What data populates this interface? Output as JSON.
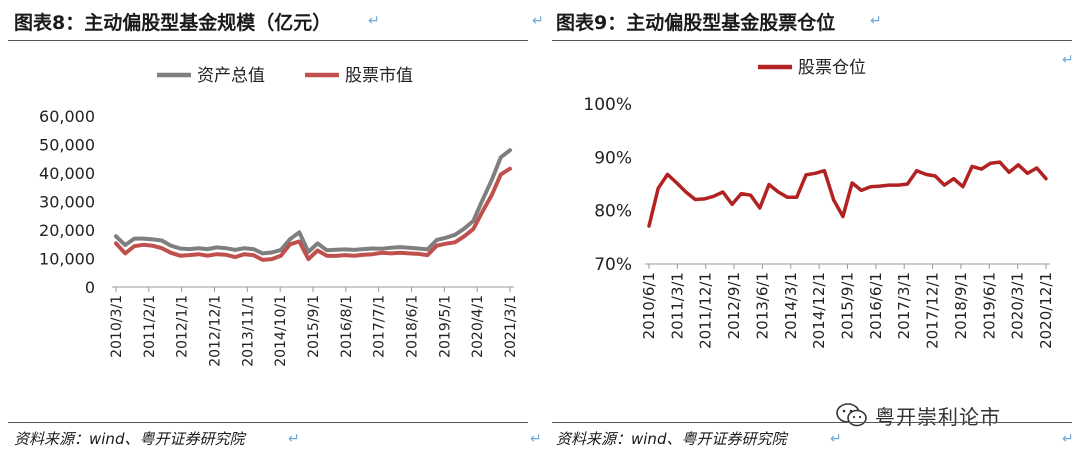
{
  "left": {
    "title": "图表8：主动偏股型基金规模（亿元）",
    "source": "资料来源：wind、粤开证券研究院"
  },
  "right": {
    "title": "图表9：主动偏股型基金股票仓位",
    "source": "资料来源：wind、粤开证券研究院"
  },
  "watermark": {
    "text": "粤开崇利论市"
  },
  "colors": {
    "total": "#7f7f7f",
    "stock": "#c0504d",
    "position": "#b22222",
    "axis": "#999999"
  },
  "chart_data": [
    {
      "type": "line",
      "title": "",
      "ylim": [
        0,
        60000
      ],
      "yticks": [
        0,
        10000,
        20000,
        30000,
        40000,
        50000,
        60000
      ],
      "ytick_labels": [
        "0",
        "10,000",
        "20,000",
        "30,000",
        "40,000",
        "50,000",
        "60,000"
      ],
      "xtick_labels": [
        "2010/3/1",
        "2011/2/1",
        "2012/1/1",
        "2012/12/1",
        "2013/11/1",
        "2014/10/1",
        "2015/9/1",
        "2016/8/1",
        "2017/7/1",
        "2018/6/1",
        "2019/5/1",
        "2020/4/1",
        "2021/3/1"
      ],
      "legend_position": "top",
      "series": [
        {
          "name": "资产总值",
          "color": "#7f7f7f",
          "values": [
            17800,
            14700,
            17000,
            17000,
            16700,
            16300,
            14500,
            13500,
            13300,
            13600,
            13300,
            13900,
            13600,
            13000,
            13600,
            13300,
            11800,
            12100,
            13000,
            16800,
            19200,
            12300,
            15300,
            12900,
            13100,
            13200,
            13000,
            13300,
            13500,
            13400,
            13800,
            14000,
            13800,
            13500,
            13200,
            16500,
            17300,
            18300,
            20500,
            23200,
            30500,
            37500,
            45500,
            48000
          ]
        },
        {
          "name": "股票市值",
          "color": "#c0504d",
          "values": [
            15300,
            11800,
            14300,
            14800,
            14500,
            13600,
            12000,
            11000,
            11200,
            11500,
            11000,
            11500,
            11300,
            10500,
            11500,
            11200,
            9500,
            9800,
            11000,
            15000,
            16000,
            9800,
            12800,
            11000,
            10900,
            11200,
            11000,
            11300,
            11500,
            12000,
            11800,
            12000,
            11800,
            11600,
            11200,
            14500,
            15200,
            15700,
            17800,
            20300,
            26500,
            32200,
            39500,
            41500
          ]
        }
      ]
    },
    {
      "type": "line",
      "title": "",
      "ylim": [
        0.7,
        1.0
      ],
      "yticks": [
        0.7,
        0.8,
        0.9,
        1.0
      ],
      "ytick_labels": [
        "70%",
        "80%",
        "90%",
        "100%"
      ],
      "xtick_labels": [
        "2010/6/1",
        "2011/3/1",
        "2011/12/1",
        "2012/9/1",
        "2013/6/1",
        "2014/3/1",
        "2014/12/1",
        "2015/9/1",
        "2016/6/1",
        "2017/3/1",
        "2017/12/1",
        "2018/9/1",
        "2019/6/1",
        "2020/3/1",
        "2020/12/1"
      ],
      "legend_position": "top",
      "series": [
        {
          "name": "股票仓位",
          "color": "#b22222",
          "values": [
            0.771,
            0.842,
            0.868,
            0.852,
            0.835,
            0.821,
            0.822,
            0.827,
            0.835,
            0.812,
            0.832,
            0.829,
            0.805,
            0.849,
            0.835,
            0.825,
            0.825,
            0.867,
            0.87,
            0.875,
            0.82,
            0.789,
            0.852,
            0.838,
            0.845,
            0.846,
            0.848,
            0.848,
            0.85,
            0.875,
            0.868,
            0.865,
            0.848,
            0.86,
            0.845,
            0.883,
            0.878,
            0.889,
            0.891,
            0.872,
            0.886,
            0.87,
            0.88,
            0.86
          ]
        }
      ]
    }
  ]
}
